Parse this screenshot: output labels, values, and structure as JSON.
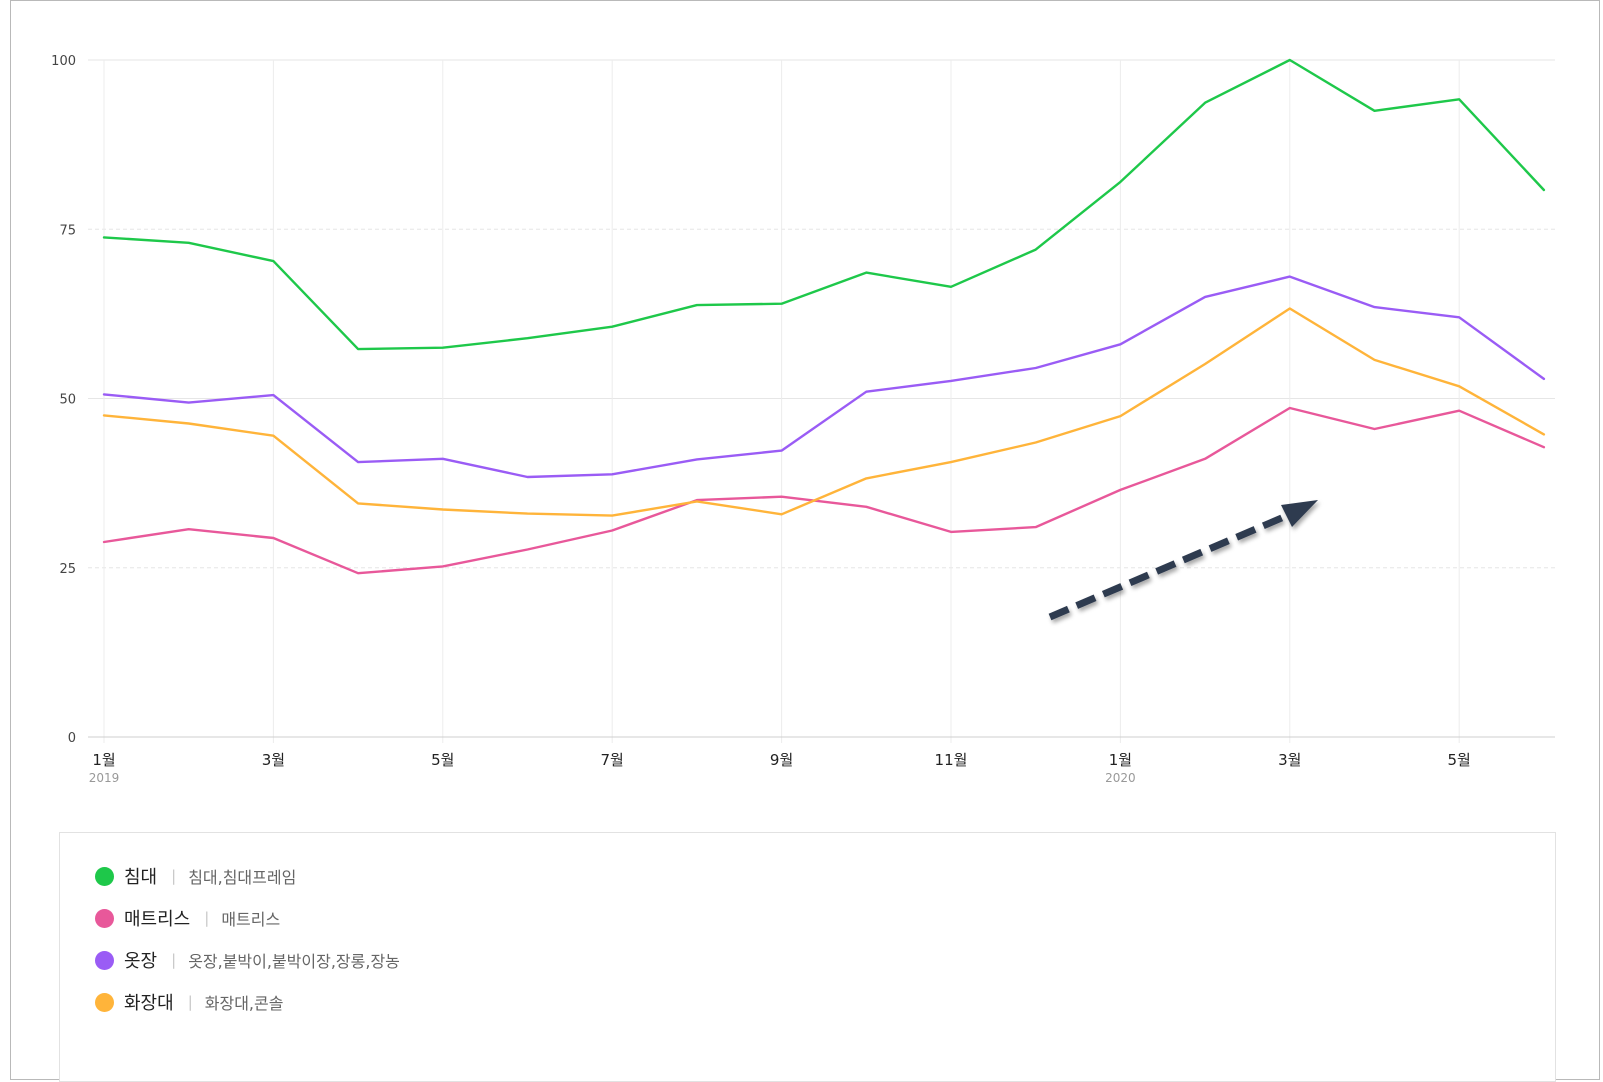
{
  "chart_data": {
    "type": "line",
    "title": "",
    "xlabel": "",
    "ylabel": "",
    "ylim": [
      0,
      100
    ],
    "yticks": [
      "0",
      "25",
      "50",
      "75",
      "100"
    ],
    "x": [
      "2019-01",
      "2019-02",
      "2019-03",
      "2019-04",
      "2019-05",
      "2019-06",
      "2019-07",
      "2019-08",
      "2019-09",
      "2019-10",
      "2019-11",
      "2019-12",
      "2020-01",
      "2020-02",
      "2020-03",
      "2020-04",
      "2020-05",
      "2020-06"
    ],
    "xtick_labels": [
      {
        "month": "1월",
        "year": "2019"
      },
      {
        "month": "3월",
        "year": ""
      },
      {
        "month": "5월",
        "year": ""
      },
      {
        "month": "7월",
        "year": ""
      },
      {
        "month": "9월",
        "year": ""
      },
      {
        "month": "11월",
        "year": ""
      },
      {
        "month": "1월",
        "year": "2020"
      },
      {
        "month": "3월",
        "year": ""
      },
      {
        "month": "5월",
        "year": ""
      }
    ],
    "grid": true,
    "legend_position": "bottom",
    "series": [
      {
        "name": "침대",
        "keywords": "침대,침대프레임",
        "color": "#1ec84a",
        "values": [
          73.8,
          73,
          70.3,
          57.3,
          57.5,
          58.9,
          60.6,
          63.8,
          64,
          68.6,
          66.5,
          72,
          82,
          93.7,
          100,
          92.5,
          94.2,
          80.8
        ]
      },
      {
        "name": "매트리스",
        "keywords": "매트리스",
        "color": "#e8589a",
        "values": [
          28.8,
          30.7,
          29.4,
          24.2,
          25.2,
          27.7,
          30.5,
          35,
          35.5,
          34,
          30.3,
          31,
          36.5,
          41.1,
          48.6,
          45.5,
          48.2,
          42.8
        ]
      },
      {
        "name": "옷장",
        "keywords": "옷장,붙박이,붙박이장,장롱,장농",
        "color": "#9a5cf5",
        "values": [
          50.6,
          49.4,
          50.5,
          40.6,
          41.1,
          38.4,
          38.8,
          41,
          42.3,
          51,
          52.6,
          54.5,
          58,
          65,
          68,
          63.5,
          62,
          52.9
        ]
      },
      {
        "name": "화장대",
        "keywords": "화장대,콘솔",
        "color": "#ffb43a",
        "values": [
          47.5,
          46.3,
          44.5,
          34.5,
          33.6,
          33,
          32.7,
          34.8,
          32.9,
          38.2,
          40.6,
          43.5,
          47.4,
          55.1,
          63.3,
          55.7,
          51.8,
          44.7
        ]
      }
    ]
  },
  "annotation": {
    "arrow_color": "#2e3a4f"
  }
}
